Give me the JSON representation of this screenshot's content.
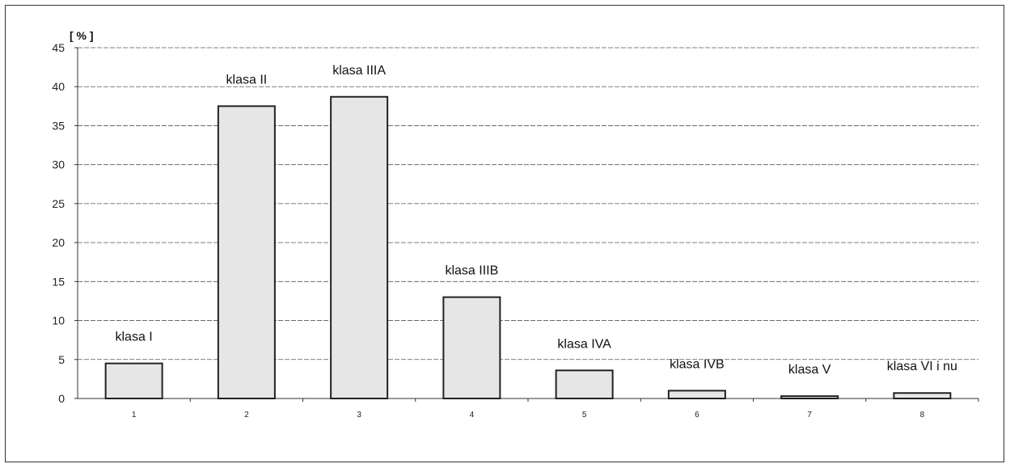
{
  "chart_data": {
    "type": "bar",
    "title": "",
    "ylabel": "[ % ]",
    "xlabel": "",
    "categories": [
      "1",
      "2",
      "3",
      "4",
      "5",
      "6",
      "7",
      "8"
    ],
    "values": [
      4.5,
      37.5,
      38.7,
      13.0,
      3.6,
      1.0,
      0.3,
      0.7
    ],
    "data_labels": [
      "klasa I",
      "klasa II",
      "klasa IIIA",
      "klasa IIIB",
      "klasa IVA",
      "klasa IVB",
      "klasa V",
      "klasa VI i nu"
    ],
    "yticks": [
      "0",
      "5",
      "10",
      "15",
      "20",
      "25",
      "30",
      "35",
      "40",
      "45"
    ],
    "ylim": [
      0,
      45
    ],
    "grid": true,
    "legend": "none",
    "colors": {
      "bar_fill": "#e6e6e6",
      "bar_stroke": "#222222",
      "grid": "#555555",
      "axis": "#333333"
    }
  }
}
